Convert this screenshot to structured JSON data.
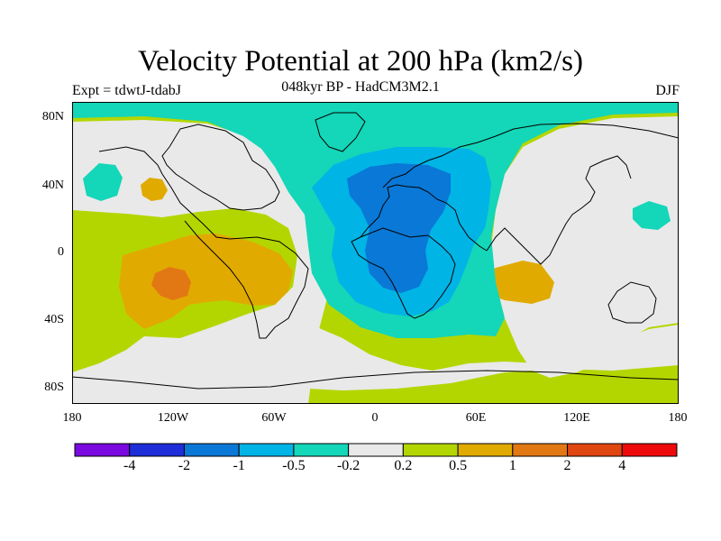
{
  "header": {
    "title": "Velocity Potential at 200 hPa (km2/s)",
    "subtitle": "048kyr BP - HadCM3M2.1",
    "experiment": "Expt = tdwtJ-tdabJ",
    "season": "DJF"
  },
  "axes": {
    "lat_labels": [
      "80N",
      "40N",
      "0",
      "40S",
      "80S"
    ],
    "lon_labels": [
      "180",
      "120W",
      "60W",
      "0",
      "60E",
      "120E",
      "180"
    ]
  },
  "legend": {
    "colors": [
      "#7a0ae0",
      "#1e2ed8",
      "#0a78d6",
      "#00b4e6",
      "#14d6b8",
      "#e9e9e9",
      "#b4d600",
      "#e1aa00",
      "#e27814",
      "#e04610",
      "#ee0a0a"
    ],
    "labels": [
      "-4",
      "-2",
      "-1",
      "-0.5",
      "-0.2",
      "0.2",
      "0.5",
      "1",
      "2",
      "4"
    ]
  },
  "chart_data": {
    "type": "heatmap",
    "title": "Velocity Potential at 200 hPa (km2/s)",
    "variable": "velocity potential anomaly",
    "units": "km2/s",
    "levels": [
      -4,
      -2,
      -1,
      -0.5,
      -0.2,
      0.2,
      0.5,
      1,
      2,
      4
    ],
    "projection": "cylindrical equidistant",
    "lon_range": [
      -180,
      180
    ],
    "lat_range": [
      -90,
      90
    ],
    "features": [
      {
        "region": "Africa / Europe / Mediterranean",
        "center": [
          20,
          20
        ],
        "min_value": -2,
        "sign": "negative"
      },
      {
        "region": "Tropical eastern Pacific",
        "center": [
          -120,
          -20
        ],
        "max_value": 2,
        "sign": "positive"
      },
      {
        "region": "Eastern Indian Ocean",
        "center": [
          100,
          -20
        ],
        "max_value": 1,
        "sign": "positive"
      },
      {
        "region": "Southern Ocean",
        "center": [
          0,
          -60
        ],
        "max_value": 0.5,
        "sign": "positive"
      },
      {
        "region": "Arctic",
        "center": [
          0,
          85
        ],
        "min_value": -0.5,
        "sign": "negative"
      },
      {
        "region": "Asia",
        "center": [
          100,
          45
        ],
        "value_range": [
          -0.2,
          0.2
        ],
        "sign": "neutral"
      }
    ]
  }
}
